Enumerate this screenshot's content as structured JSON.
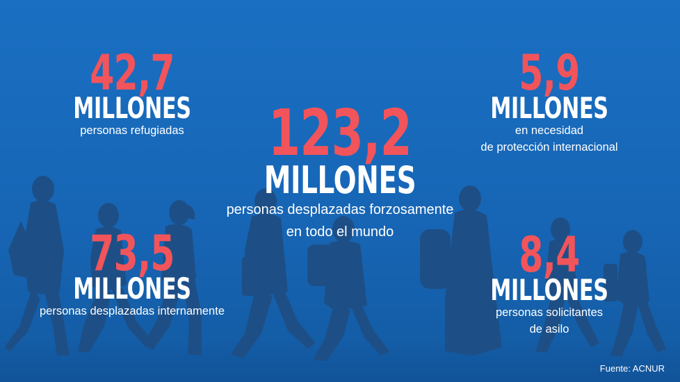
{
  "stats": {
    "refugees": {
      "number": "42,7",
      "unit": "MILLONES",
      "line1": "personas refugiadas",
      "line2": ""
    },
    "total": {
      "number": "123,2",
      "unit": "MILLONES",
      "line1": "personas desplazadas forzosamente",
      "line2": "en todo el mundo"
    },
    "protection": {
      "number": "5,9",
      "unit": "MILLONES",
      "line1": "en necesidad",
      "line2": "de protección internacional"
    },
    "internal": {
      "number": "73,5",
      "unit": "MILLONES",
      "line1": "personas desplazadas internamente",
      "line2": ""
    },
    "asylum": {
      "number": "8,4",
      "unit": "MILLONES",
      "line1": "personas solicitantes",
      "line2": "de asilo"
    }
  },
  "source": "Fuente: ACNUR",
  "colors": {
    "background": "#1a6fc2",
    "number": "#f2545b",
    "text": "#ffffff",
    "silhouette": "#1d4f86"
  },
  "illustration": "walking-people-silhouettes"
}
